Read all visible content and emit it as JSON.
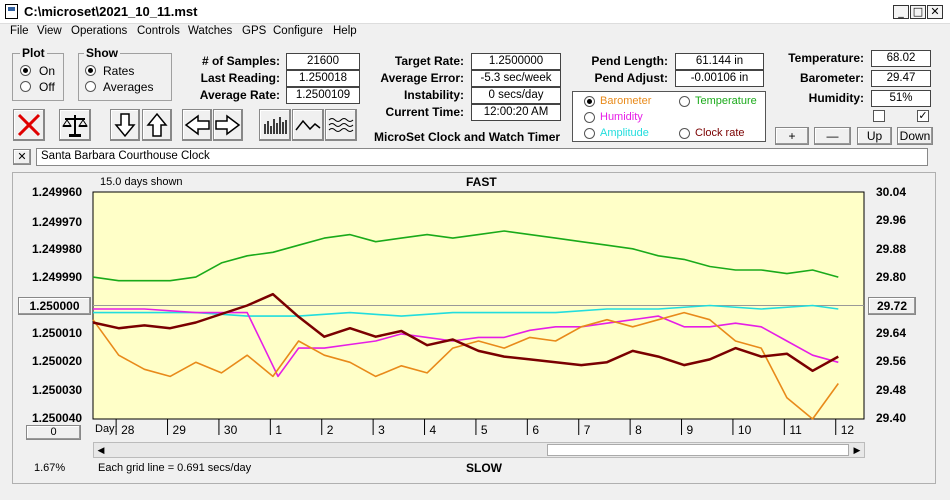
{
  "window": {
    "title": "C:\\microset\\2021_10_11.mst"
  },
  "menu": [
    "File",
    "View",
    "Operations",
    "Controls",
    "Watches",
    "GPS",
    "Configure",
    "Help"
  ],
  "plot_group": {
    "title": "Plot",
    "on": "On",
    "off": "Off",
    "selected": "On"
  },
  "show_group": {
    "title": "Show",
    "rates": "Rates",
    "averages": "Averages",
    "selected": "Rates"
  },
  "stats": {
    "samples_label": "# of Samples:",
    "samples": "21600",
    "last_reading_label": "Last Reading:",
    "last_reading": "1.250018",
    "average_rate_label": "Average Rate:",
    "average_rate": "1.2500109",
    "target_rate_label": "Target Rate:",
    "target_rate": "1.2500000",
    "average_error_label": "Average Error:",
    "average_error": "-5.3 sec/week",
    "instability_label": "Instability:",
    "instability": "0 secs/day",
    "current_time_label": "Current Time:",
    "current_time": "12:00:20 AM",
    "app_caption": "MicroSet Clock and Watch Timer",
    "pend_length_label": "Pend Length:",
    "pend_length": "61.144 in",
    "pend_adjust_label": "Pend Adjust:",
    "pend_adjust": "-0.00106 in",
    "temperature_label": "Temperature:",
    "temperature": "68.02",
    "barometer_label": "Barometer:",
    "barometer": "29.47",
    "humidity_label": "Humidity:",
    "humidity": "51%"
  },
  "series_select": {
    "barometer": "Barometer",
    "temperature": "Temperature",
    "humidity": "Humidity",
    "amplitude": "Amplitude",
    "clock_rate": "Clock rate",
    "selected": "Barometer"
  },
  "adjust_buttons": {
    "plus": "+",
    "minus": "—",
    "up": "Up",
    "down": "Down"
  },
  "checkboxes": {
    "left_checked": false,
    "right_checked": true
  },
  "clock_name": "Santa Barbara Courthouse Clock",
  "colors": {
    "barometer": "#e88a1a",
    "temperature": "#1aaa1a",
    "humidity": "#e61ee6",
    "amplitude": "#22dddd",
    "clock_rate": "#7a0000",
    "plot_bg": "#ffffc8"
  },
  "chart_data": {
    "type": "line",
    "title": "FAST",
    "bottom_title": "SLOW",
    "days_shown": "15.0 days shown",
    "grid_note": "Each grid line = 0.691 secs/day",
    "zoom": "1.67%",
    "x_label": "Day:",
    "x_ticks": [
      "28",
      "29",
      "30",
      "1",
      "2",
      "3",
      "4",
      "5",
      "6",
      "7",
      "8",
      "9",
      "10",
      "11",
      "12"
    ],
    "y_left_ticks": [
      "1.249960",
      "1.249970",
      "1.249980",
      "1.249990",
      "1.250000",
      "1.250010",
      "1.250020",
      "1.250030",
      "1.250040"
    ],
    "y_left_range": [
      1.24996,
      1.25004
    ],
    "y_left_note": "inverted (FAST at top)",
    "y_right_ticks": [
      "30.04",
      "29.96",
      "29.88",
      "29.80",
      "29.72",
      "29.64",
      "29.56",
      "29.48",
      "29.40"
    ],
    "y_right_range": [
      29.4,
      30.04
    ],
    "left_button": "1.250000",
    "right_button": "29.72",
    "bottom_left_button": "0",
    "x_range": [
      0,
      15
    ],
    "series": [
      {
        "name": "Temperature",
        "color": "#1aaa1a",
        "axis": "right",
        "x": [
          0,
          0.5,
          1,
          1.5,
          2,
          2.5,
          3,
          3.5,
          4,
          4.5,
          5,
          5.5,
          6,
          6.5,
          7,
          7.5,
          8,
          8.5,
          9,
          9.5,
          10,
          10.5,
          11,
          11.5,
          12,
          12.5,
          13,
          13.5,
          14,
          14.5
        ],
        "values": [
          29.8,
          29.79,
          29.79,
          29.79,
          29.8,
          29.84,
          29.86,
          29.87,
          29.89,
          29.91,
          29.92,
          29.9,
          29.91,
          29.92,
          29.91,
          29.92,
          29.93,
          29.92,
          29.91,
          29.9,
          29.89,
          29.88,
          29.86,
          29.85,
          29.83,
          29.82,
          29.82,
          29.81,
          29.82,
          29.8
        ]
      },
      {
        "name": "Amplitude",
        "color": "#22dddd",
        "axis": "right",
        "x": [
          0,
          1,
          2,
          3,
          4,
          5,
          6,
          7,
          8,
          9,
          10,
          11,
          12,
          13,
          14,
          14.5
        ],
        "values": [
          29.7,
          29.7,
          29.7,
          29.69,
          29.69,
          29.7,
          29.69,
          29.7,
          29.7,
          29.7,
          29.71,
          29.71,
          29.72,
          29.71,
          29.72,
          29.71
        ]
      },
      {
        "name": "Humidity",
        "color": "#e61ee6",
        "axis": "right",
        "x": [
          0,
          1,
          2,
          3,
          3.4,
          3.6,
          3.8,
          4,
          4.5,
          5,
          5.5,
          6,
          6.5,
          7,
          7.5,
          8,
          8.5,
          9,
          9.5,
          10,
          10.5,
          11,
          11.5,
          12,
          12.5,
          13,
          13.5,
          14,
          14.5
        ],
        "values": [
          29.71,
          29.71,
          29.7,
          29.7,
          29.58,
          29.52,
          29.56,
          29.6,
          29.6,
          29.61,
          29.62,
          29.64,
          29.63,
          29.62,
          29.63,
          29.63,
          29.65,
          29.66,
          29.66,
          29.67,
          29.68,
          29.69,
          29.66,
          29.66,
          29.67,
          29.66,
          29.62,
          29.58,
          29.56
        ]
      },
      {
        "name": "Barometer",
        "color": "#e88a1a",
        "axis": "right",
        "x": [
          0,
          0.5,
          1,
          1.5,
          2,
          2.5,
          3,
          3.5,
          4,
          4.5,
          5,
          5.5,
          6,
          6.5,
          7,
          7.5,
          8,
          8.5,
          9,
          9.5,
          10,
          10.5,
          11,
          11.5,
          12,
          12.5,
          13,
          13.5,
          14,
          14.5
        ],
        "values": [
          29.68,
          29.58,
          29.54,
          29.52,
          29.56,
          29.53,
          29.58,
          29.52,
          29.62,
          29.58,
          29.56,
          29.52,
          29.55,
          29.53,
          29.6,
          29.62,
          29.6,
          29.63,
          29.62,
          29.66,
          29.68,
          29.66,
          29.68,
          29.7,
          29.68,
          29.62,
          29.6,
          29.46,
          29.4,
          29.5
        ]
      },
      {
        "name": "Clock rate",
        "color": "#7a0000",
        "axis": "left",
        "x": [
          0,
          0.5,
          1,
          1.5,
          2,
          2.5,
          3,
          3.5,
          4,
          4.5,
          5,
          5.5,
          6,
          6.5,
          7,
          7.5,
          8,
          8.5,
          9,
          9.5,
          10,
          10.5,
          11,
          11.5,
          12,
          12.5,
          13,
          13.5,
          14,
          14.5
        ],
        "values": [
          1.250006,
          1.250008,
          1.250007,
          1.250008,
          1.250006,
          1.250003,
          1.25,
          1.249996,
          1.250004,
          1.250011,
          1.250008,
          1.250011,
          1.250009,
          1.250014,
          1.250012,
          1.250016,
          1.250018,
          1.250019,
          1.25002,
          1.250021,
          1.25002,
          1.250016,
          1.250018,
          1.250021,
          1.250019,
          1.250015,
          1.250018,
          1.250017,
          1.250023,
          1.250018
        ]
      }
    ]
  }
}
